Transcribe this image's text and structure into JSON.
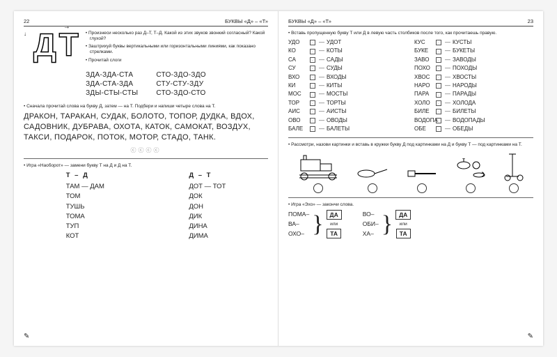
{
  "left": {
    "pageNum": "22",
    "header": "БУКВЫ «Д» – «Т»",
    "letterD": "Д",
    "letterT": "Т",
    "instructions": [
      "Произнеси несколько раз Д–Т, Т–Д. Какой из этих звуков звонкий согласный? Какой глухой?",
      "Заштрихуй буквы вертикальными или горизонтальными линиями, как показано стрелками.",
      "Прочитай слоги"
    ],
    "syllablesLeft": [
      "ЗДА-ЗДА-СТА",
      "ЗДА-СТА-ЗДА",
      "ЗДЫ-СТЫ-СТЫ"
    ],
    "syllablesRight": [
      "СТО-ЗДО-ЗДО",
      "СТУ-СТУ-ЗДУ",
      "СТО-ЗДО-СТО"
    ],
    "task2": "Сначала прочитай слова на букву Д, затем — на Т. Подбери и напиши четыре слова на Т.",
    "words": "ДРАКОН, ТАРАКАН, СУДАК, БОЛОТО, ТОПОР, ДУДКА, ВДОХ, САДОВНИК, ДУБРАВА, ОХОТА, КАТОК, САМОКАТ, ВОЗДУХ, ТАКСИ, ПОДАРОК, ПОТОК, МОТОР, СТАДО, ТАНК.",
    "gameNote": "Игра «Наоборот» — замени букву Т на Д и Д на Т.",
    "colA_hdr": "Т  –  Д",
    "colB_hdr": "Д  –  Т",
    "colA": [
      "ТАМ  —  ДАМ",
      "ТОМ",
      "ТУШЬ",
      "ТОМА",
      "ТУП",
      "КОТ"
    ],
    "colB": [
      "ДОТ  —  ТОТ",
      "ДОК",
      "ДОН",
      "ДИК",
      "ДИНА",
      "ДИМА"
    ]
  },
  "right": {
    "header": "БУКВЫ «Д» – «Т»",
    "pageNum": "23",
    "task1": "Вставь пропущенную букву Т или Д в левую часть столбиков после того, как прочитаешь правую.",
    "col1": [
      [
        "УДО",
        "УДОТ"
      ],
      [
        "КО",
        "КОТЫ"
      ],
      [
        "СА",
        "САДЫ"
      ],
      [
        "СУ",
        "СУДЫ"
      ],
      [
        "ВХО",
        "ВХОДЫ"
      ],
      [
        "КИ",
        "КИТЫ"
      ],
      [
        "МОС",
        "МОСТЫ"
      ],
      [
        "ТОР",
        "ТОРТЫ"
      ],
      [
        "АИС",
        "АИСТЫ"
      ],
      [
        "ОВО",
        "ОВОДЫ"
      ],
      [
        "БАЛЕ",
        "БАЛЕТЫ"
      ]
    ],
    "col2": [
      [
        "КУС",
        "КУСТЫ"
      ],
      [
        "БУКЕ",
        "БУКЕТЫ"
      ],
      [
        "ЗАВО",
        "ЗАВОДЫ"
      ],
      [
        "ПОХО",
        "ПОХОДЫ"
      ],
      [
        "ХВОС",
        "ХВОСТЫ"
      ],
      [
        "НАРО",
        "НАРОДЫ"
      ],
      [
        "ПАРА",
        "ПАРАДЫ"
      ],
      [
        "ХОЛО",
        "ХОЛОДА"
      ],
      [
        "БИЛЕ",
        "БИЛЕТЫ"
      ],
      [
        "ВОДОПА",
        "ВОДОПАДЫ"
      ],
      [
        "ОБЕ",
        "ОБЕДЫ"
      ]
    ],
    "task2": "Рассмотри, назови картинки и вставь в кружки букву Д под картинками на Д и букву Т — под картинками на Т.",
    "task3": "Игра «Эхо» — закончи слова.",
    "echoLeft": [
      "ПОМА–",
      "ВА–",
      "ОХО–"
    ],
    "echoRight": [
      "ВО–",
      "ОБИ–",
      "ХА–"
    ],
    "boxDA": "ДА",
    "boxTA": "ТА",
    "or": "или"
  }
}
